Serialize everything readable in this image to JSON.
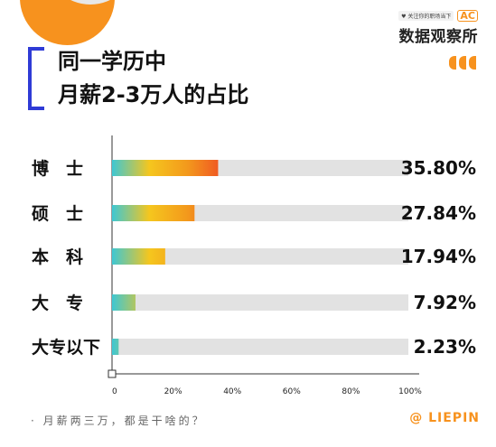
{
  "brand": {
    "logo_mark": "AC",
    "tagline": "♥ 关注你的职场当下",
    "name": "数据观察所"
  },
  "title": {
    "line1": "同一学历中",
    "line2": "月薪2-3万人的占比"
  },
  "footer": {
    "note": "· 月薪两三万，都是干啥的？",
    "brand": "@ LIEPIN"
  },
  "colors": {
    "accent": "#f7921e",
    "title_bracket": "#2f3bd6",
    "bar_track": "#e2e2e2",
    "bar_gradient": [
      "#3ec7d3",
      "#f5c61e",
      "#f39a1c",
      "#f05a22"
    ]
  },
  "chart_data": {
    "type": "bar",
    "orientation": "horizontal",
    "categories": [
      "博　士",
      "硕　士",
      "本　科",
      "大　专",
      "大专以下"
    ],
    "values": [
      35.8,
      27.84,
      17.94,
      7.92,
      2.23
    ],
    "value_labels": [
      "35.80%",
      "27.84%",
      "17.94%",
      "7.92%",
      "2.23%"
    ],
    "x_ticks": [
      "0",
      "20%",
      "40%",
      "60%",
      "80%",
      "100%"
    ],
    "xlim": [
      0,
      100
    ],
    "unit": "%",
    "grid": false,
    "legend": "none"
  }
}
